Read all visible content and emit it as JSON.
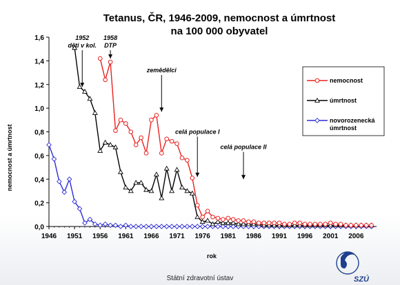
{
  "chart_data": {
    "type": "line",
    "title": [
      "Tetanus, ČR, 1946-2009, nemocnost a úmrtnost",
      "na 100 000 obyvatel"
    ],
    "xlabel": "rok",
    "ylabel": "nemocnost a úmrtnost",
    "xlim": [
      1946,
      2010
    ],
    "ylim": [
      0,
      1.6
    ],
    "x_ticks": [
      "1946",
      "1951",
      "1956",
      "1961",
      "1966",
      "1971",
      "1976",
      "1981",
      "1986",
      "1991",
      "1996",
      "2001",
      "2006"
    ],
    "y_ticks": [
      "0,0",
      "0,2",
      "0,4",
      "0,6",
      "0,8",
      "1,0",
      "1,2",
      "1,4",
      "1,6"
    ],
    "legend_position": "right",
    "series": [
      {
        "name": "nemocnost",
        "color": "#e8201f",
        "marker": "circle",
        "x": [
          1956,
          1957,
          1958,
          1959,
          1960,
          1961,
          1962,
          1963,
          1964,
          1965,
          1966,
          1967,
          1968,
          1969,
          1970,
          1971,
          1972,
          1973,
          1974,
          1975,
          1976,
          1977,
          1978,
          1979,
          1980,
          1981,
          1982,
          1983,
          1984,
          1985,
          1986,
          1987,
          1988,
          1989,
          1990,
          1991,
          1992,
          1993,
          1994,
          1995,
          1996,
          1997,
          1998,
          1999,
          2000,
          2001,
          2002,
          2003,
          2004,
          2005,
          2006,
          2007,
          2008,
          2009
        ],
        "y": [
          1.42,
          1.24,
          1.39,
          0.81,
          0.9,
          0.87,
          0.8,
          0.69,
          0.75,
          0.62,
          0.9,
          0.94,
          0.62,
          0.74,
          0.72,
          0.7,
          0.58,
          0.56,
          0.41,
          0.18,
          0.08,
          0.13,
          0.08,
          0.07,
          0.06,
          0.07,
          0.06,
          0.05,
          0.05,
          0.04,
          0.04,
          0.03,
          0.03,
          0.03,
          0.03,
          0.03,
          0.02,
          0.02,
          0.03,
          0.03,
          0.02,
          0.02,
          0.02,
          0.02,
          0.02,
          0.03,
          0.02,
          0.02,
          0.01,
          0.01,
          0.01,
          0.01,
          0.01,
          0.01
        ]
      },
      {
        "name": "úmrtnost",
        "color": "#000000",
        "marker": "triangle",
        "x": [
          1951,
          1952,
          1953,
          1954,
          1955,
          1956,
          1957,
          1958,
          1959,
          1960,
          1961,
          1962,
          1963,
          1964,
          1965,
          1966,
          1967,
          1968,
          1969,
          1970,
          1971,
          1972,
          1973,
          1974,
          1975,
          1976,
          1977,
          1978,
          1979,
          1980,
          1981,
          1982,
          1983,
          1984,
          1985,
          1986,
          1987,
          1988,
          1989,
          1990,
          1991,
          1992,
          1993,
          1994,
          1995,
          1996,
          1997,
          1998,
          1999,
          2000,
          2001,
          2002,
          2003,
          2004,
          2005,
          2006,
          2007,
          2008,
          2009
        ],
        "y": [
          1.51,
          1.18,
          1.14,
          1.08,
          0.96,
          0.64,
          0.71,
          0.69,
          0.67,
          0.46,
          0.33,
          0.3,
          0.37,
          0.37,
          0.31,
          0.3,
          0.44,
          0.24,
          0.49,
          0.3,
          0.48,
          0.33,
          0.3,
          0.28,
          0.08,
          0.04,
          0.05,
          0.02,
          0.04,
          0.03,
          0.03,
          0.03,
          0.02,
          0.02,
          0.02,
          0.02,
          0.02,
          0.01,
          0.01,
          0.01,
          0.01,
          0.01,
          0.01,
          0.01,
          0.01,
          0.01,
          0.01,
          0.01,
          0.01,
          0.01,
          0.01,
          0.01,
          0.01,
          0.01,
          0.01,
          0.01,
          0.01,
          0.01,
          0.01
        ]
      },
      {
        "name": "novorozenecká úmrtnost",
        "color": "#2b2bd6",
        "marker": "diamond",
        "x": [
          1946,
          1947,
          1948,
          1949,
          1950,
          1951,
          1952,
          1953,
          1954,
          1955,
          1956,
          1957,
          1958,
          1959,
          1960,
          1961,
          1962,
          1963,
          1964,
          1965,
          1966,
          1967,
          1968,
          1969,
          1970,
          1971,
          1972,
          1973,
          1974,
          1975,
          1976,
          1977,
          1978,
          1979,
          1980,
          1981,
          1982,
          1983,
          1984,
          1985,
          1986,
          1987,
          1988,
          1989,
          1990,
          1991,
          1992,
          1993,
          1994,
          1995,
          1996,
          1997,
          1998,
          1999,
          2000,
          2001,
          2002,
          2003,
          2004,
          2005,
          2006,
          2007,
          2008,
          2009
        ],
        "y": [
          0.69,
          0.57,
          0.38,
          0.29,
          0.4,
          0.21,
          0.15,
          0.03,
          0.06,
          0.02,
          0.01,
          0.02,
          0.01,
          0.01,
          0,
          0.01,
          0,
          0,
          0,
          0,
          0,
          0,
          0,
          0,
          0,
          0,
          0,
          0,
          0,
          0,
          0,
          0,
          0,
          0,
          0,
          0,
          0,
          0,
          0,
          0,
          0,
          0,
          0,
          0,
          0,
          0,
          0,
          0,
          0,
          0,
          0,
          0,
          0,
          0,
          0,
          0,
          0,
          0,
          0,
          0,
          0,
          0,
          0,
          0
        ]
      }
    ],
    "annotations": [
      {
        "lines": [
          "1952",
          "děti v kol."
        ],
        "x": 1952.5,
        "y_from": 1.49,
        "y_to": 1.18
      },
      {
        "lines": [
          "1958",
          "DTP"
        ],
        "x": 1958,
        "y_from": 1.49,
        "y_to": 1.42
      },
      {
        "lines": [
          "zemědělci"
        ],
        "x": 1968,
        "y_from": 1.28,
        "y_to": 0.97
      },
      {
        "lines": [
          "celá populace I"
        ],
        "x": 1975,
        "y_from": 0.76,
        "y_to": 0.42
      },
      {
        "lines": [
          "celá populace II"
        ],
        "x": 1984,
        "y_from": 0.63,
        "y_to": 0.4
      }
    ]
  },
  "footer": "Státní zdravotní ústav",
  "logo_text": "SZÚ"
}
